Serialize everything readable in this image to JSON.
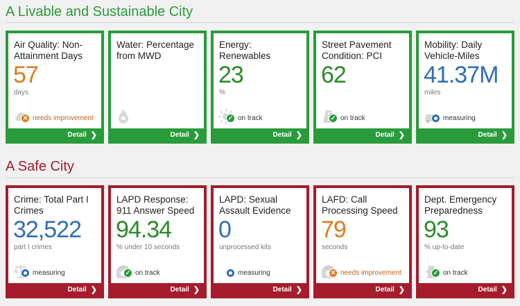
{
  "sections": [
    {
      "title": "A Livable and Sustainable City",
      "color": "#2a9b3b",
      "cards": [
        {
          "title": "Air Quality: Non-Attainment Days",
          "value": "57",
          "value_color": "#e07b1f",
          "unit": "days",
          "status": "needs improvement",
          "status_type": "warn",
          "icon": "cloud-icon"
        },
        {
          "title": "Water: Percentage from MWD",
          "value": "",
          "value_color": "#2a8a2a",
          "unit": "",
          "status": "",
          "status_type": "none",
          "icon": "water-drop-icon"
        },
        {
          "title": "Energy: Renewables",
          "value": "23",
          "value_color": "#2a8a2a",
          "unit": "%",
          "status": "on track",
          "status_type": "ok",
          "icon": "sun-icon"
        },
        {
          "title": "Street Pavement Condition: PCI",
          "value": "62",
          "value_color": "#2a8a2a",
          "unit": "",
          "status": "on track",
          "status_type": "ok",
          "icon": "road-icon"
        },
        {
          "title": "Mobility: Daily Vehicle-Miles",
          "value": "41.37M",
          "value_color": "#2f6eb5",
          "unit": "miles",
          "status": "measuring",
          "status_type": "measure",
          "icon": "car-icon"
        }
      ]
    },
    {
      "title": "A Safe City",
      "color": "#a51c2d",
      "cards": [
        {
          "title": "Crime: Total Part I Crimes",
          "value": "32,522",
          "value_color": "#2f6eb5",
          "unit": "part I crimes",
          "status": "measuring",
          "status_type": "measure",
          "icon": "scales-icon"
        },
        {
          "title": "LAPD Response: 911 Answer Speed",
          "value": "94.34",
          "value_color": "#2a8a2a",
          "unit": "% under 10 seconds",
          "status": "on track",
          "status_type": "ok",
          "icon": "phone-icon"
        },
        {
          "title": "LAPD: Sexual Assault Evidence",
          "value": "0",
          "value_color": "#2f6eb5",
          "unit": "unprocessed kits",
          "status": "measuring",
          "status_type": "measure",
          "icon": "none"
        },
        {
          "title": "LAFD: Call Processing Speed",
          "value": "79",
          "value_color": "#e07b1f",
          "unit": "seconds",
          "status": "needs improvement",
          "status_type": "warn",
          "icon": "phone-icon"
        },
        {
          "title": "Dept. Emergency Preparedness",
          "value": "93",
          "value_color": "#2a8a2a",
          "unit": "% up-to-date",
          "status": "on track",
          "status_type": "ok",
          "icon": "hydrant-icon"
        }
      ]
    }
  ],
  "detail_label": "Detail",
  "status_colors": {
    "ok": "#2a9b3b",
    "warn": "#e07b1f",
    "measure": "#2f6eb5"
  }
}
